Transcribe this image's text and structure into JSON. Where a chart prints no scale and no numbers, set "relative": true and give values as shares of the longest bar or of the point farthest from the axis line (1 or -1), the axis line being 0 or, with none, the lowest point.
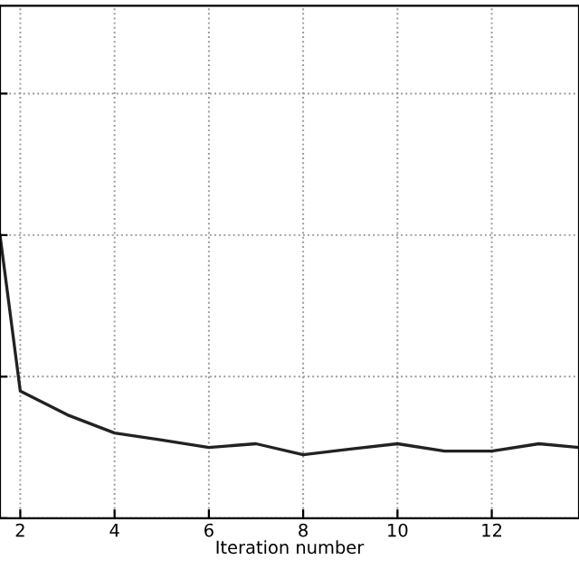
{
  "chart_data": {
    "type": "line",
    "xlabel": "Iteration number",
    "relative": true,
    "x": [
      1.57,
      2,
      3,
      4,
      5,
      6,
      7,
      8,
      9,
      10,
      11,
      12,
      13,
      13.85
    ],
    "series": [
      {
        "color": "#222222",
        "values": [
          1,
          0.449,
          0.365,
          0.301,
          0.276,
          0.25,
          0.263,
          0.224,
          0.244,
          0.263,
          0.237,
          0.237,
          0.263,
          0.25
        ]
      }
    ],
    "xlim": [
      1.57,
      13.85
    ],
    "xticks": [
      2,
      4,
      6,
      8,
      10,
      12
    ],
    "grid": true,
    "marker": "none",
    "line_style": "solid"
  }
}
